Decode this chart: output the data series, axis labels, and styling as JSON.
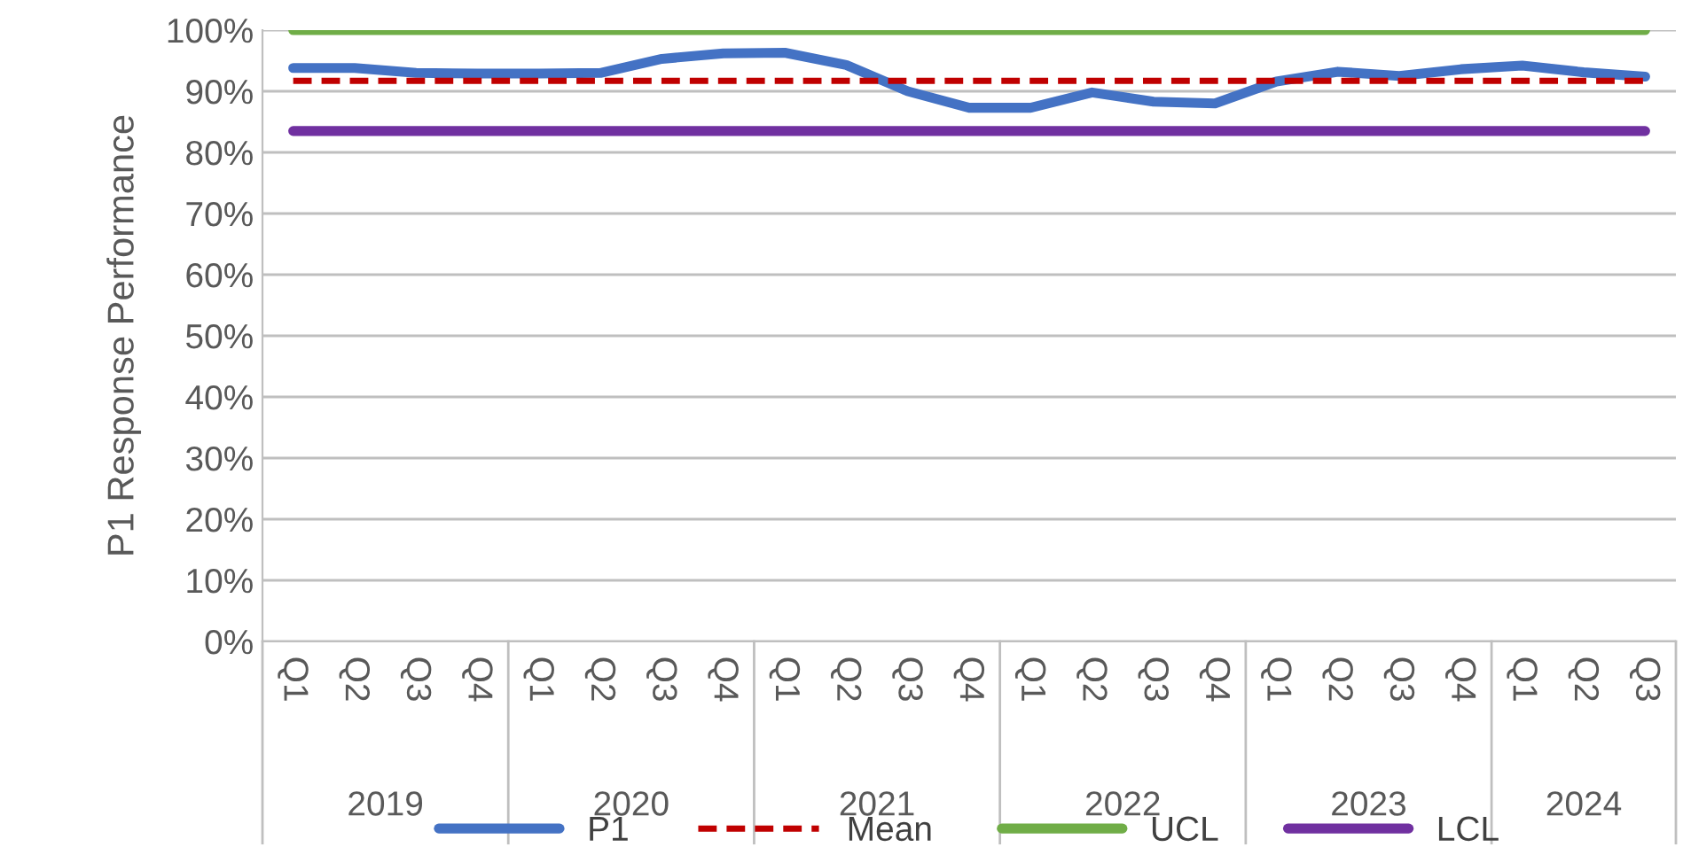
{
  "chart_data": {
    "type": "line",
    "ylabel": "P1 Response Performance",
    "categories": [
      "Q1",
      "Q2",
      "Q3",
      "Q4",
      "Q1",
      "Q2",
      "Q3",
      "Q4",
      "Q1",
      "Q2",
      "Q3",
      "Q4",
      "Q1",
      "Q2",
      "Q3",
      "Q4",
      "Q1",
      "Q2",
      "Q3",
      "Q4",
      "Q1",
      "Q2",
      "Q3"
    ],
    "annotations": [
      "2019",
      "2020",
      "2021",
      "2022",
      "2023",
      "2024"
    ],
    "series": [
      {
        "name": "P1",
        "color": "#4472c4",
        "line_style": "solid",
        "values": [
          93.8,
          93.8,
          93.0,
          92.9,
          92.9,
          93.0,
          95.3,
          96.2,
          96.3,
          94.3,
          90.0,
          87.3,
          87.3,
          89.8,
          88.3,
          88.0,
          91.6,
          93.2,
          92.5,
          93.6,
          94.2,
          93.1,
          92.4
        ]
      },
      {
        "name": "Mean",
        "color": "#c00000",
        "line_style": "dashed",
        "values": [
          91.7,
          91.7,
          91.7,
          91.7,
          91.7,
          91.7,
          91.7,
          91.7,
          91.7,
          91.7,
          91.7,
          91.7,
          91.7,
          91.7,
          91.7,
          91.7,
          91.7,
          91.7,
          91.7,
          91.7,
          91.7,
          91.7,
          91.7
        ]
      },
      {
        "name": "UCL",
        "color": "#70ad47",
        "line_style": "solid",
        "values": [
          100,
          100,
          100,
          100,
          100,
          100,
          100,
          100,
          100,
          100,
          100,
          100,
          100,
          100,
          100,
          100,
          100,
          100,
          100,
          100,
          100,
          100,
          100
        ]
      },
      {
        "name": "LCL",
        "color": "#7030a0",
        "line_style": "solid",
        "values": [
          83.5,
          83.5,
          83.5,
          83.5,
          83.5,
          83.5,
          83.5,
          83.5,
          83.5,
          83.5,
          83.5,
          83.5,
          83.5,
          83.5,
          83.5,
          83.5,
          83.5,
          83.5,
          83.5,
          83.5,
          83.5,
          83.5,
          83.5
        ]
      }
    ],
    "ylim": [
      0,
      100
    ],
    "yticks": [
      {
        "value": 0,
        "label": "0%"
      },
      {
        "value": 10,
        "label": "10%"
      },
      {
        "value": 20,
        "label": "20%"
      },
      {
        "value": 30,
        "label": "30%"
      },
      {
        "value": 40,
        "label": "40%"
      },
      {
        "value": 50,
        "label": "50%"
      },
      {
        "value": 60,
        "label": "60%"
      },
      {
        "value": 70,
        "label": "70%"
      },
      {
        "value": 80,
        "label": "80%"
      },
      {
        "value": 90,
        "label": "90%"
      },
      {
        "value": 100,
        "label": "100%"
      }
    ],
    "grid": "y",
    "legend": "bottom",
    "marker": "none"
  }
}
